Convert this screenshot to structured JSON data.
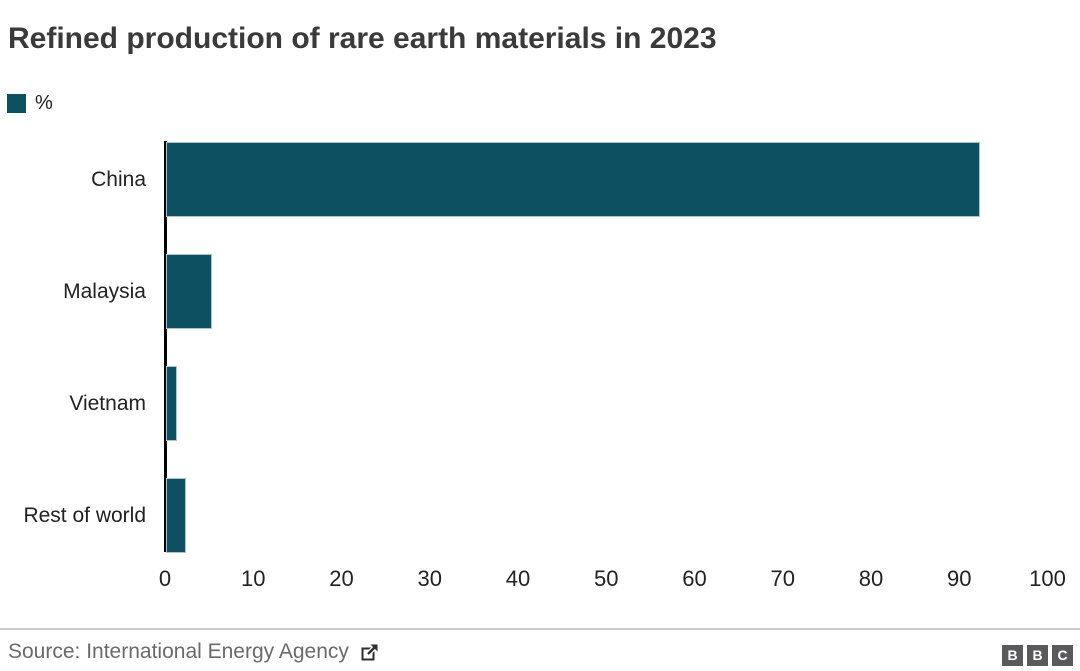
{
  "title": "Refined production of rare earth materials in 2023",
  "legend": {
    "label": "%",
    "swatch_color": "#0c5061"
  },
  "chart_data": {
    "type": "bar",
    "orientation": "horizontal",
    "title": "Refined production of rare earth materials in 2023",
    "unit": "%",
    "categories": [
      "China",
      "Malaysia",
      "Vietnam",
      "Rest of world"
    ],
    "values": [
      92,
      5,
      1,
      2
    ],
    "xlim": [
      0,
      100
    ],
    "x_ticks": [
      0,
      10,
      20,
      30,
      40,
      50,
      60,
      70,
      80,
      90,
      100
    ],
    "bar_color": "#0c5061",
    "axis_color": "#000000",
    "grid": false,
    "legend_position": "top-left"
  },
  "footer": {
    "source": "Source: International Energy Agency",
    "external_link_icon": "external-link",
    "logo_letters": [
      "B",
      "B",
      "C"
    ]
  }
}
